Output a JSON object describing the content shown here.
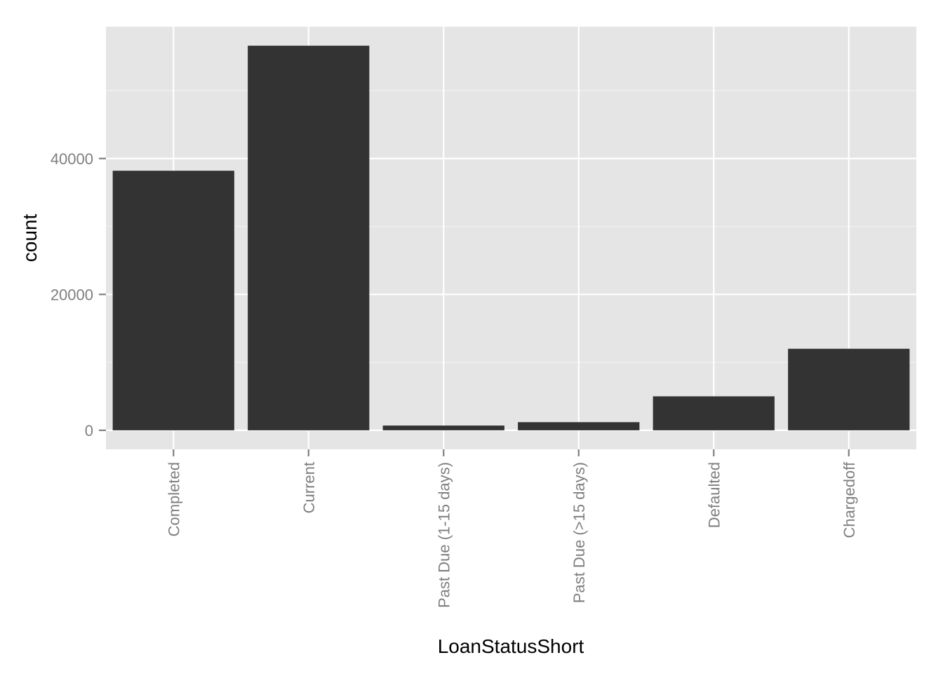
{
  "chart_data": {
    "type": "bar",
    "categories": [
      "Completed",
      "Current",
      "Past Due (1-15 days)",
      "Past Due (>15 days)",
      "Defaulted",
      "Chargedoff"
    ],
    "values": [
      38200,
      56600,
      700,
      1200,
      5000,
      12000
    ],
    "xlabel": "LoanStatusShort",
    "ylabel": "count",
    "ylim": [
      -2800,
      59400
    ],
    "yticks": [
      0,
      20000,
      40000
    ],
    "grid": true,
    "bar_color": "#333333",
    "panel_color": "#e5e5e5",
    "grid_color": "#ffffff"
  }
}
